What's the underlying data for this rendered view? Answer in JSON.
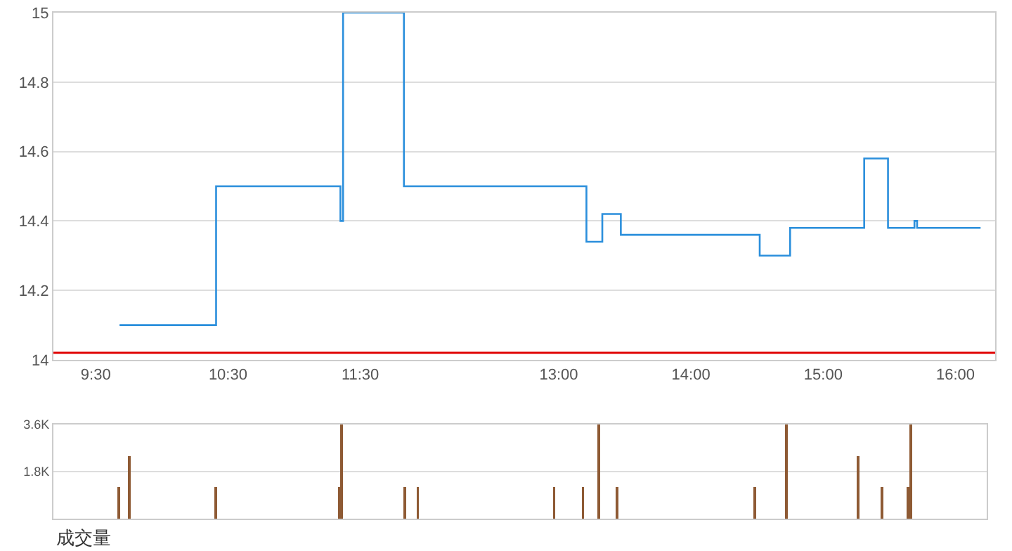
{
  "chart_data": [
    {
      "type": "step",
      "x": [
        9.68,
        10.41,
        11.35,
        11.37,
        11.83,
        13.21,
        13.33,
        13.47,
        14.52,
        14.75,
        15.31,
        15.49,
        15.69,
        15.71,
        16.19
      ],
      "series": [
        {
          "color": "#2b8fdc",
          "values": [
            14.1,
            14.5,
            14.4,
            15,
            14.5,
            14.34,
            14.42,
            14.36,
            14.3,
            14.38,
            14.58,
            14.38,
            14.4,
            14.38,
            14.38
          ]
        }
      ],
      "xlim": [
        9.18,
        16.3
      ],
      "xticks": [
        {
          "value": 9.5,
          "label": "9:30"
        },
        {
          "value": 10.5,
          "label": "10:30"
        },
        {
          "value": 11.5,
          "label": "11:30"
        },
        {
          "value": 13,
          "label": "13:00"
        },
        {
          "value": 14,
          "label": "14:00"
        },
        {
          "value": 15,
          "label": "15:00"
        },
        {
          "value": 16,
          "label": "16:00"
        }
      ],
      "ylim": [
        14,
        15
      ],
      "yticks": [
        14,
        14.2,
        14.4,
        14.6,
        14.8,
        15
      ],
      "grid": "y",
      "ref_lines": [
        {
          "axis": "y",
          "value": 14.02,
          "color": "#e00000"
        }
      ]
    },
    {
      "type": "bar",
      "xlabel": "成交量",
      "x": [
        9.68,
        9.76,
        10.42,
        11.36,
        11.38,
        11.86,
        11.96,
        13.0,
        13.22,
        13.34,
        13.48,
        14.53,
        14.77,
        15.32,
        15.5,
        15.7,
        15.72
      ],
      "series": [
        {
          "color": "#8e5a34",
          "values": [
            1200,
            2400,
            1200,
            1200,
            3600,
            1200,
            1200,
            1200,
            1200,
            3600,
            1200,
            1200,
            3600,
            2400,
            1200,
            1200,
            3600
          ]
        }
      ],
      "xlim": [
        9.18,
        16.3
      ],
      "ylim": [
        0,
        3600
      ],
      "yticks": [
        {
          "value": 1800,
          "label": "1.8K"
        },
        {
          "value": 3600,
          "label": "3.6K"
        }
      ],
      "grid": "y",
      "tick_labels": "y"
    }
  ]
}
